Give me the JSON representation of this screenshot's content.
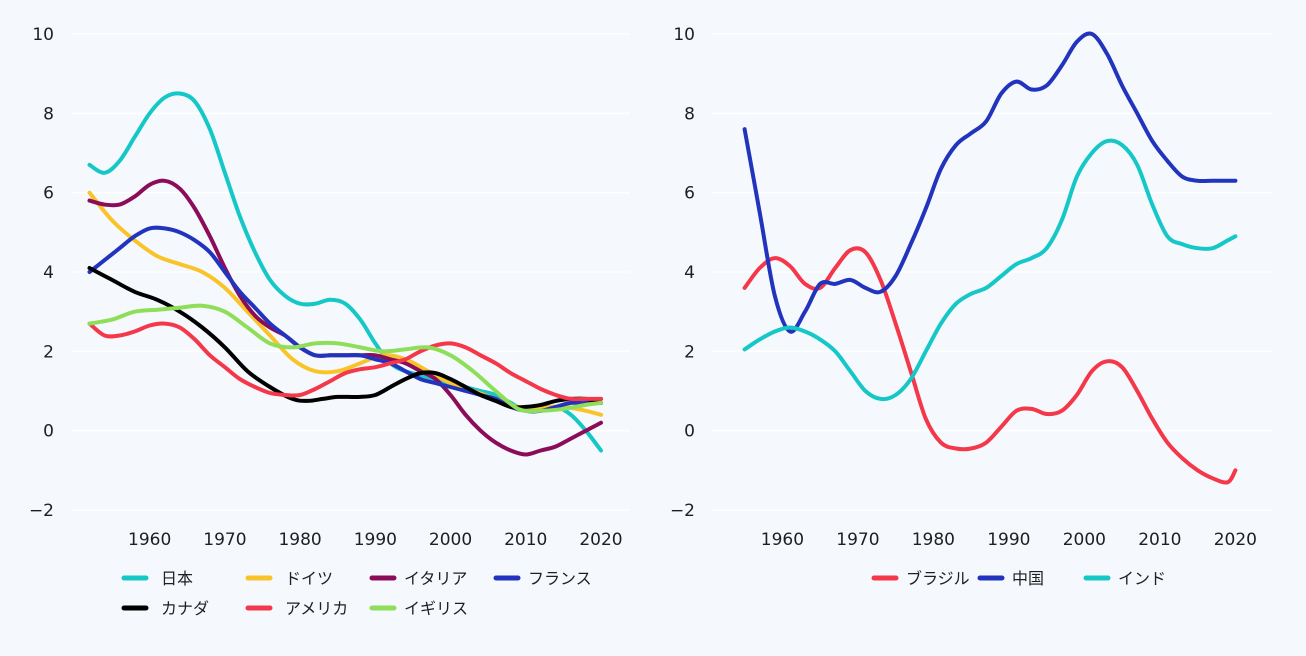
{
  "colors": {
    "background": "#f5f9fd",
    "gridline": "#ffffff",
    "text": "#1f1f1f"
  },
  "chart_data": [
    {
      "type": "line",
      "title": "",
      "xlabel": "",
      "ylabel": "",
      "xlim": [
        1951,
        2022
      ],
      "ylim": [
        -2,
        10
      ],
      "xticks": [
        1960,
        1970,
        1980,
        1990,
        2000,
        2010,
        2020
      ],
      "yticks": [
        -2,
        0,
        2,
        4,
        6,
        8,
        10
      ],
      "ytick_labels": [
        "−2",
        "0",
        "2",
        "4",
        "6",
        "8",
        "10"
      ],
      "grid": "horizontal",
      "legend_position": "bottom",
      "series": [
        {
          "name": "日本",
          "color": "#16c7c8",
          "x": [
            1952,
            1954,
            1956,
            1958,
            1960,
            1962,
            1964,
            1966,
            1968,
            1970,
            1972,
            1974,
            1976,
            1978,
            1980,
            1982,
            1984,
            1986,
            1988,
            1990,
            1992,
            1994,
            1996,
            1998,
            2000,
            2002,
            2004,
            2006,
            2008,
            2010,
            2012,
            2014,
            2016,
            2018,
            2020
          ],
          "y": [
            6.7,
            6.5,
            6.8,
            7.4,
            8.0,
            8.4,
            8.5,
            8.3,
            7.6,
            6.5,
            5.4,
            4.5,
            3.8,
            3.4,
            3.2,
            3.2,
            3.3,
            3.2,
            2.8,
            2.2,
            1.7,
            1.5,
            1.4,
            1.3,
            1.2,
            1.1,
            1.0,
            0.9,
            0.7,
            0.5,
            0.5,
            0.6,
            0.4,
            0.0,
            -0.5
          ]
        },
        {
          "name": "ドイツ",
          "color": "#f9c429",
          "x": [
            1952,
            1955,
            1958,
            1961,
            1964,
            1967,
            1970,
            1973,
            1976,
            1979,
            1982,
            1985,
            1988,
            1991,
            1994,
            1997,
            2000,
            2003,
            2006,
            2009,
            2012,
            2015,
            2018,
            2020
          ],
          "y": [
            6.0,
            5.3,
            4.8,
            4.4,
            4.2,
            4.0,
            3.6,
            3.0,
            2.4,
            1.8,
            1.5,
            1.5,
            1.7,
            1.9,
            1.8,
            1.5,
            1.2,
            1.0,
            0.8,
            0.6,
            0.6,
            0.6,
            0.5,
            0.4
          ]
        },
        {
          "name": "イタリア",
          "color": "#8b0d5a",
          "x": [
            1952,
            1954,
            1956,
            1958,
            1960,
            1962,
            1964,
            1966,
            1968,
            1970,
            1972,
            1974,
            1976,
            1978,
            1980,
            1982,
            1984,
            1986,
            1988,
            1990,
            1992,
            1994,
            1996,
            1998,
            2000,
            2002,
            2004,
            2006,
            2008,
            2010,
            2012,
            2014,
            2016,
            2018,
            2020
          ],
          "y": [
            5.8,
            5.7,
            5.7,
            5.9,
            6.2,
            6.3,
            6.1,
            5.6,
            4.9,
            4.1,
            3.4,
            2.9,
            2.6,
            2.4,
            2.1,
            1.9,
            1.9,
            1.9,
            1.9,
            1.9,
            1.8,
            1.7,
            1.5,
            1.3,
            0.9,
            0.4,
            0.0,
            -0.3,
            -0.5,
            -0.6,
            -0.5,
            -0.4,
            -0.2,
            0.0,
            0.2
          ]
        },
        {
          "name": "フランス",
          "color": "#2234bd",
          "x": [
            1952,
            1954,
            1956,
            1958,
            1960,
            1962,
            1964,
            1966,
            1968,
            1970,
            1972,
            1974,
            1976,
            1978,
            1980,
            1982,
            1984,
            1986,
            1988,
            1990,
            1992,
            1994,
            1996,
            1998,
            2000,
            2002,
            2004,
            2006,
            2008,
            2010,
            2012,
            2014,
            2016,
            2018,
            2020
          ],
          "y": [
            4.0,
            4.3,
            4.6,
            4.9,
            5.1,
            5.1,
            5.0,
            4.8,
            4.5,
            4.0,
            3.5,
            3.1,
            2.7,
            2.4,
            2.1,
            1.9,
            1.9,
            1.9,
            1.9,
            1.8,
            1.7,
            1.5,
            1.3,
            1.2,
            1.1,
            1.0,
            0.9,
            0.8,
            0.6,
            0.5,
            0.5,
            0.6,
            0.7,
            0.7,
            0.8
          ]
        },
        {
          "name": "カナダ",
          "color": "#000000",
          "x": [
            1952,
            1955,
            1958,
            1961,
            1964,
            1967,
            1970,
            1973,
            1976,
            1979,
            1981,
            1983,
            1985,
            1988,
            1990,
            1992,
            1994,
            1996,
            1998,
            2000,
            2002,
            2004,
            2006,
            2008,
            2010,
            2012,
            2014,
            2016,
            2018,
            2020
          ],
          "y": [
            4.1,
            3.8,
            3.5,
            3.3,
            3.0,
            2.6,
            2.1,
            1.5,
            1.1,
            0.8,
            0.75,
            0.8,
            0.85,
            0.85,
            0.9,
            1.1,
            1.3,
            1.45,
            1.45,
            1.3,
            1.1,
            0.9,
            0.75,
            0.6,
            0.6,
            0.65,
            0.75,
            0.8,
            0.8,
            0.7
          ]
        },
        {
          "name": "アメリカ",
          "color": "#f5374a",
          "x": [
            1952,
            1954,
            1956,
            1958,
            1960,
            1962,
            1964,
            1966,
            1968,
            1970,
            1972,
            1974,
            1976,
            1978,
            1980,
            1982,
            1984,
            1986,
            1988,
            1990,
            1992,
            1994,
            1996,
            1998,
            2000,
            2002,
            2004,
            2006,
            2008,
            2010,
            2012,
            2014,
            2016,
            2018,
            2020
          ],
          "y": [
            2.7,
            2.4,
            2.4,
            2.5,
            2.65,
            2.7,
            2.6,
            2.3,
            1.9,
            1.6,
            1.3,
            1.1,
            0.95,
            0.9,
            0.9,
            1.05,
            1.25,
            1.45,
            1.55,
            1.6,
            1.7,
            1.8,
            2.0,
            2.15,
            2.2,
            2.1,
            1.9,
            1.7,
            1.45,
            1.25,
            1.05,
            0.9,
            0.8,
            0.8,
            0.8
          ]
        },
        {
          "name": "イギリス",
          "color": "#8fde5a",
          "x": [
            1952,
            1955,
            1958,
            1961,
            1964,
            1967,
            1970,
            1973,
            1976,
            1979,
            1982,
            1985,
            1988,
            1991,
            1994,
            1997,
            2000,
            2003,
            2006,
            2009,
            2012,
            2015,
            2018,
            2020
          ],
          "y": [
            2.7,
            2.8,
            3.0,
            3.05,
            3.1,
            3.15,
            3.0,
            2.6,
            2.2,
            2.1,
            2.2,
            2.2,
            2.1,
            2.0,
            2.05,
            2.1,
            1.9,
            1.5,
            1.0,
            0.55,
            0.5,
            0.55,
            0.65,
            0.7
          ]
        }
      ]
    },
    {
      "type": "line",
      "title": "",
      "xlabel": "",
      "ylabel": "",
      "xlim": [
        1952,
        2023
      ],
      "ylim": [
        -2,
        10
      ],
      "xticks": [
        1960,
        1970,
        1980,
        1990,
        2000,
        2010,
        2020
      ],
      "yticks": [
        -2,
        0,
        2,
        4,
        6,
        8,
        10
      ],
      "ytick_labels": [
        "−2",
        "0",
        "2",
        "4",
        "6",
        "8",
        "10"
      ],
      "grid": "horizontal",
      "legend_position": "bottom",
      "series": [
        {
          "name": "ブラジル",
          "color": "#f5374a",
          "x": [
            1955,
            1957,
            1959,
            1961,
            1963,
            1965,
            1967,
            1969,
            1971,
            1973,
            1975,
            1977,
            1979,
            1981,
            1983,
            1985,
            1987,
            1989,
            1991,
            1993,
            1995,
            1997,
            1999,
            2001,
            2003,
            2005,
            2007,
            2009,
            2011,
            2013,
            2015,
            2017,
            2019,
            2020
          ],
          "y": [
            3.6,
            4.1,
            4.35,
            4.15,
            3.7,
            3.6,
            4.1,
            4.55,
            4.5,
            3.8,
            2.7,
            1.5,
            0.3,
            -0.3,
            -0.45,
            -0.45,
            -0.3,
            0.1,
            0.5,
            0.55,
            0.42,
            0.5,
            0.9,
            1.5,
            1.75,
            1.6,
            1.0,
            0.3,
            -0.3,
            -0.7,
            -1.0,
            -1.2,
            -1.3,
            -1.0
          ]
        },
        {
          "name": "中国",
          "color": "#2234bd",
          "x": [
            1955,
            1957,
            1959,
            1961,
            1963,
            1965,
            1967,
            1969,
            1971,
            1973,
            1975,
            1977,
            1979,
            1981,
            1983,
            1985,
            1987,
            1989,
            1991,
            1993,
            1995,
            1997,
            1999,
            2001,
            2003,
            2005,
            2007,
            2009,
            2011,
            2013,
            2015,
            2017,
            2019,
            2020
          ],
          "y": [
            7.6,
            5.5,
            3.4,
            2.5,
            3.0,
            3.7,
            3.7,
            3.8,
            3.6,
            3.5,
            3.9,
            4.7,
            5.6,
            6.6,
            7.2,
            7.5,
            7.8,
            8.5,
            8.8,
            8.6,
            8.7,
            9.2,
            9.8,
            10.0,
            9.5,
            8.7,
            8.0,
            7.3,
            6.8,
            6.4,
            6.3,
            6.3,
            6.3,
            6.3
          ]
        },
        {
          "name": "インド",
          "color": "#16c7c8",
          "x": [
            1955,
            1957,
            1959,
            1961,
            1963,
            1965,
            1967,
            1969,
            1971,
            1973,
            1975,
            1977,
            1979,
            1981,
            1983,
            1985,
            1987,
            1989,
            1991,
            1993,
            1995,
            1997,
            1999,
            2001,
            2003,
            2005,
            2007,
            2009,
            2011,
            2013,
            2015,
            2017,
            2019,
            2020
          ],
          "y": [
            2.05,
            2.3,
            2.5,
            2.6,
            2.5,
            2.3,
            2.0,
            1.5,
            1.0,
            0.8,
            0.9,
            1.3,
            2.0,
            2.7,
            3.2,
            3.45,
            3.6,
            3.9,
            4.2,
            4.35,
            4.6,
            5.3,
            6.4,
            7.0,
            7.3,
            7.2,
            6.7,
            5.7,
            4.9,
            4.7,
            4.6,
            4.6,
            4.8,
            4.9
          ]
        }
      ]
    }
  ]
}
